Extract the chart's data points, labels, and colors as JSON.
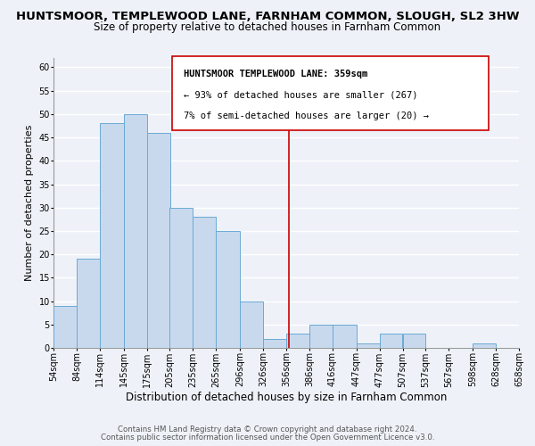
{
  "title": "HUNTSMOOR, TEMPLEWOOD LANE, FARNHAM COMMON, SLOUGH, SL2 3HW",
  "subtitle": "Size of property relative to detached houses in Farnham Common",
  "xlabel": "Distribution of detached houses by size in Farnham Common",
  "ylabel": "Number of detached properties",
  "bar_left_edges": [
    54,
    84,
    114,
    145,
    175,
    205,
    235,
    265,
    296,
    326,
    356,
    386,
    416,
    447,
    477,
    507,
    537,
    567,
    598,
    628
  ],
  "bar_heights": [
    9,
    19,
    48,
    50,
    46,
    30,
    28,
    25,
    10,
    2,
    3,
    5,
    5,
    1,
    3,
    3,
    0,
    0,
    1,
    0
  ],
  "bar_widths": [
    30,
    30,
    31,
    30,
    30,
    30,
    30,
    31,
    30,
    30,
    30,
    30,
    31,
    30,
    30,
    30,
    30,
    31,
    30,
    30
  ],
  "tick_labels": [
    "54sqm",
    "84sqm",
    "114sqm",
    "145sqm",
    "175sqm",
    "205sqm",
    "235sqm",
    "265sqm",
    "296sqm",
    "326sqm",
    "356sqm",
    "386sqm",
    "416sqm",
    "447sqm",
    "477sqm",
    "507sqm",
    "537sqm",
    "567sqm",
    "598sqm",
    "628sqm",
    "658sqm"
  ],
  "bar_color": "#c8d9ee",
  "bar_edge_color": "#6aaad4",
  "vline_x": 359,
  "vline_color": "#cc0000",
  "ylim": [
    0,
    62
  ],
  "yticks": [
    0,
    5,
    10,
    15,
    20,
    25,
    30,
    35,
    40,
    45,
    50,
    55,
    60
  ],
  "annotation_title": "HUNTSMOOR TEMPLEWOOD LANE: 359sqm",
  "annotation_line1": "← 93% of detached houses are smaller (267)",
  "annotation_line2": "7% of semi-detached houses are larger (20) →",
  "footer1": "Contains HM Land Registry data © Crown copyright and database right 2024.",
  "footer2": "Contains public sector information licensed under the Open Government Licence v3.0.",
  "bg_color": "#eef2f8",
  "grid_color": "#ffffff",
  "title_fontsize": 9.5,
  "subtitle_fontsize": 8.5,
  "xlabel_fontsize": 8.5,
  "ylabel_fontsize": 8,
  "tick_fontsize": 7,
  "footer_fontsize": 6.2
}
